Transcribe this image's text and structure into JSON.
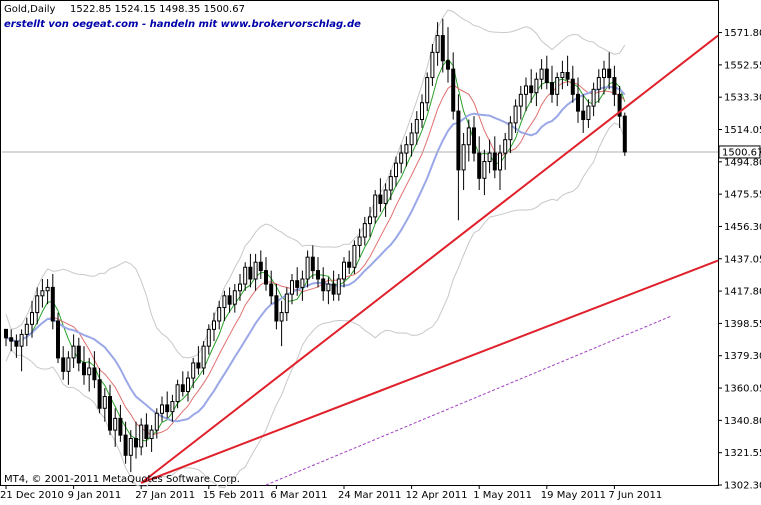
{
  "header": {
    "symbol": "Gold,Daily",
    "ohlc": "1522.85 1524.15 1498.35 1500.67",
    "subtitle": "erstellt von oegeat.com - handeln mit www.brokervorschlag.de"
  },
  "footer": {
    "copyright": "MT4, © 2001-2011 MetaQuotes Software Corp."
  },
  "colors": {
    "candle_up": "#ffffff",
    "candle_down": "#000000",
    "trendline": "#e0202a",
    "ma_fast": "#2aa02a",
    "ma_mid": "#e07070",
    "ma_slow": "#9aa8e8",
    "bands": "#c8c8c8",
    "ma_long": "#a040c0",
    "current_price_line": "#b0b0b0",
    "subtitle": "#0000aa"
  },
  "chart_data": {
    "type": "candlestick",
    "y_axis": {
      "ylim": [
        1302.3,
        1590.0
      ],
      "tick_labels": [
        "1571.80",
        "1552.55",
        "1533.30",
        "1514.05",
        "1494.80",
        "1475.55",
        "1456.30",
        "1437.05",
        "1417.80",
        "1398.55",
        "1379.30",
        "1360.05",
        "1340.80",
        "1321.55",
        "1302.30"
      ],
      "current_price_label": "1500.67",
      "current_price": 1500.67
    },
    "x_axis": {
      "tick_labels": [
        "21 Dec 2010",
        "9 Jan 2011",
        "27 Jan 2011",
        "15 Feb 2011",
        "6 Mar 2011",
        "24 Mar 2011",
        "12 Apr 2011",
        "1 May 2011",
        "19 May 2011",
        "7 Jun 2011"
      ],
      "tick_bar_index": [
        0,
        13,
        26,
        39,
        52,
        65,
        78,
        91,
        104,
        117
      ]
    },
    "candles": [
      [
        1395,
        1395,
        1385,
        1390
      ],
      [
        1390,
        1395,
        1382,
        1388
      ],
      [
        1388,
        1392,
        1378,
        1385
      ],
      [
        1385,
        1395,
        1370,
        1392
      ],
      [
        1392,
        1402,
        1385,
        1398
      ],
      [
        1398,
        1412,
        1390,
        1405
      ],
      [
        1405,
        1420,
        1398,
        1415
      ],
      [
        1415,
        1425,
        1408,
        1418
      ],
      [
        1418,
        1425,
        1410,
        1420
      ],
      [
        1420,
        1428,
        1395,
        1400
      ],
      [
        1400,
        1405,
        1375,
        1378
      ],
      [
        1378,
        1385,
        1365,
        1370
      ],
      [
        1370,
        1382,
        1362,
        1378
      ],
      [
        1378,
        1392,
        1372,
        1385
      ],
      [
        1385,
        1390,
        1370,
        1375
      ],
      [
        1375,
        1385,
        1362,
        1368
      ],
      [
        1368,
        1378,
        1358,
        1372
      ],
      [
        1372,
        1382,
        1360,
        1365
      ],
      [
        1365,
        1372,
        1345,
        1348
      ],
      [
        1348,
        1360,
        1340,
        1355
      ],
      [
        1355,
        1362,
        1332,
        1335
      ],
      [
        1335,
        1348,
        1325,
        1342
      ],
      [
        1342,
        1350,
        1328,
        1332
      ],
      [
        1332,
        1340,
        1315,
        1320
      ],
      [
        1320,
        1335,
        1310,
        1330
      ],
      [
        1330,
        1340,
        1318,
        1325
      ],
      [
        1325,
        1342,
        1320,
        1338
      ],
      [
        1338,
        1345,
        1325,
        1330
      ],
      [
        1330,
        1338,
        1322,
        1335
      ],
      [
        1335,
        1348,
        1330,
        1345
      ],
      [
        1345,
        1355,
        1340,
        1350
      ],
      [
        1350,
        1358,
        1342,
        1346
      ],
      [
        1346,
        1356,
        1340,
        1352
      ],
      [
        1352,
        1365,
        1348,
        1362
      ],
      [
        1362,
        1370,
        1355,
        1358
      ],
      [
        1358,
        1370,
        1352,
        1366
      ],
      [
        1366,
        1378,
        1360,
        1375
      ],
      [
        1375,
        1385,
        1368,
        1372
      ],
      [
        1372,
        1388,
        1368,
        1385
      ],
      [
        1385,
        1398,
        1380,
        1395
      ],
      [
        1395,
        1405,
        1388,
        1400
      ],
      [
        1400,
        1412,
        1395,
        1408
      ],
      [
        1408,
        1418,
        1400,
        1415
      ],
      [
        1415,
        1420,
        1405,
        1410
      ],
      [
        1410,
        1422,
        1405,
        1418
      ],
      [
        1418,
        1428,
        1412,
        1422
      ],
      [
        1422,
        1435,
        1418,
        1432
      ],
      [
        1432,
        1440,
        1420,
        1425
      ],
      [
        1425,
        1440,
        1418,
        1435
      ],
      [
        1435,
        1442,
        1425,
        1430
      ],
      [
        1430,
        1438,
        1418,
        1422
      ],
      [
        1422,
        1430,
        1410,
        1415
      ],
      [
        1415,
        1422,
        1395,
        1400
      ],
      [
        1400,
        1412,
        1385,
        1405
      ],
      [
        1405,
        1420,
        1400,
        1416
      ],
      [
        1416,
        1428,
        1410,
        1424
      ],
      [
        1424,
        1432,
        1415,
        1420
      ],
      [
        1420,
        1430,
        1412,
        1425
      ],
      [
        1425,
        1442,
        1420,
        1438
      ],
      [
        1438,
        1445,
        1425,
        1430
      ],
      [
        1430,
        1438,
        1420,
        1425
      ],
      [
        1425,
        1432,
        1412,
        1418
      ],
      [
        1418,
        1426,
        1410,
        1422
      ],
      [
        1422,
        1430,
        1412,
        1416
      ],
      [
        1416,
        1428,
        1412,
        1425
      ],
      [
        1425,
        1438,
        1420,
        1435
      ],
      [
        1435,
        1442,
        1428,
        1432
      ],
      [
        1432,
        1448,
        1428,
        1445
      ],
      [
        1445,
        1455,
        1438,
        1450
      ],
      [
        1450,
        1462,
        1445,
        1458
      ],
      [
        1458,
        1468,
        1450,
        1462
      ],
      [
        1462,
        1478,
        1458,
        1475
      ],
      [
        1475,
        1485,
        1465,
        1470
      ],
      [
        1470,
        1482,
        1462,
        1478
      ],
      [
        1478,
        1490,
        1472,
        1486
      ],
      [
        1486,
        1498,
        1480,
        1494
      ],
      [
        1494,
        1505,
        1488,
        1500
      ],
      [
        1500,
        1510,
        1492,
        1505
      ],
      [
        1505,
        1518,
        1498,
        1512
      ],
      [
        1512,
        1525,
        1505,
        1520
      ],
      [
        1520,
        1535,
        1515,
        1530
      ],
      [
        1530,
        1548,
        1525,
        1545
      ],
      [
        1545,
        1565,
        1540,
        1560
      ],
      [
        1560,
        1578,
        1552,
        1570
      ],
      [
        1570,
        1580,
        1548,
        1555
      ],
      [
        1555,
        1575,
        1542,
        1550
      ],
      [
        1550,
        1560,
        1520,
        1525
      ],
      [
        1525,
        1535,
        1460,
        1490
      ],
      [
        1490,
        1512,
        1478,
        1505
      ],
      [
        1505,
        1520,
        1495,
        1515
      ],
      [
        1515,
        1522,
        1495,
        1500
      ],
      [
        1500,
        1510,
        1478,
        1485
      ],
      [
        1485,
        1502,
        1475,
        1495
      ],
      [
        1495,
        1508,
        1488,
        1500
      ],
      [
        1500,
        1510,
        1485,
        1490
      ],
      [
        1490,
        1505,
        1478,
        1500
      ],
      [
        1500,
        1512,
        1490,
        1508
      ],
      [
        1508,
        1522,
        1500,
        1518
      ],
      [
        1518,
        1532,
        1512,
        1528
      ],
      [
        1528,
        1540,
        1520,
        1535
      ],
      [
        1535,
        1545,
        1525,
        1540
      ],
      [
        1540,
        1550,
        1530,
        1536
      ],
      [
        1536,
        1548,
        1528,
        1544
      ],
      [
        1544,
        1556,
        1538,
        1550
      ],
      [
        1550,
        1558,
        1538,
        1542
      ],
      [
        1542,
        1552,
        1530,
        1535
      ],
      [
        1535,
        1548,
        1528,
        1545
      ],
      [
        1545,
        1555,
        1538,
        1548
      ],
      [
        1548,
        1558,
        1540,
        1544
      ],
      [
        1544,
        1552,
        1530,
        1535
      ],
      [
        1535,
        1545,
        1518,
        1525
      ],
      [
        1525,
        1535,
        1512,
        1520
      ],
      [
        1520,
        1532,
        1515,
        1528
      ],
      [
        1528,
        1542,
        1522,
        1538
      ],
      [
        1538,
        1550,
        1530,
        1545
      ],
      [
        1545,
        1555,
        1535,
        1550
      ],
      [
        1550,
        1560,
        1538,
        1545
      ],
      [
        1545,
        1552,
        1528,
        1535
      ],
      [
        1535,
        1540,
        1515,
        1522
      ],
      [
        1522,
        1524.15,
        1498.35,
        1500.67
      ]
    ],
    "trendlines": [
      {
        "from": [
          26,
          1303.5
        ],
        "to": [
          148,
          1570
        ]
      },
      {
        "from": [
          26,
          1303.5
        ],
        "to": [
          148,
          1436
        ]
      }
    ],
    "ma_long_line": {
      "from": [
        50,
        1302.3
      ],
      "to": [
        128,
        1403
      ]
    }
  }
}
